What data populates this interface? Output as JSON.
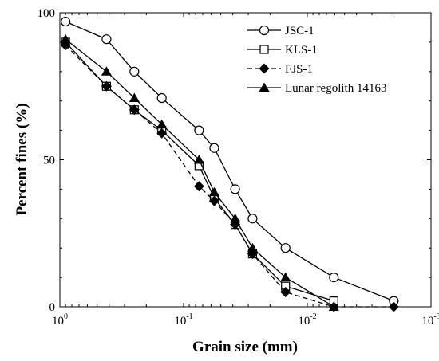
{
  "chart_data": {
    "type": "line",
    "xscale": "log",
    "xdirection": "reversed",
    "xlim": [
      1.0,
      0.001
    ],
    "ylim": [
      0,
      100
    ],
    "xlabel": "Grain size (mm)",
    "ylabel": "Percent fines (%)",
    "xticks": [
      {
        "value": 1.0,
        "base": "10",
        "exp": "0"
      },
      {
        "value": 0.1,
        "base": "10",
        "exp": "-1"
      },
      {
        "value": 0.01,
        "base": "10",
        "exp": "-2"
      },
      {
        "value": 0.001,
        "base": "10",
        "exp": "-3"
      }
    ],
    "yticks": [
      {
        "value": 0,
        "label": "0"
      },
      {
        "value": 50,
        "label": "50"
      },
      {
        "value": 100,
        "label": "100"
      }
    ],
    "grid": false,
    "legend_position": "top-right",
    "series": [
      {
        "name": "JSC-1",
        "marker": "circle-open",
        "line": "solid",
        "x": [
          0.9,
          0.42,
          0.25,
          0.15,
          0.075,
          0.0565,
          0.0383,
          0.0277,
          0.015,
          0.0061,
          0.002
        ],
        "y": [
          97,
          91,
          80,
          71,
          60,
          54,
          40,
          30,
          20,
          10,
          2
        ]
      },
      {
        "name": "KLS-1",
        "marker": "square-open",
        "line": "solid",
        "x": [
          0.9,
          0.42,
          0.25,
          0.15,
          0.075,
          0.0565,
          0.0383,
          0.0277,
          0.015,
          0.0061
        ],
        "y": [
          90,
          75,
          67,
          60,
          48,
          37,
          28,
          18,
          7,
          2
        ]
      },
      {
        "name": "FJS-1",
        "marker": "diamond-filled",
        "line": "dashed",
        "x": [
          0.9,
          0.42,
          0.25,
          0.15,
          0.075,
          0.0565,
          0.0383,
          0.0277,
          0.015,
          0.0061,
          0.002
        ],
        "y": [
          89,
          75,
          67,
          59,
          41,
          36,
          28,
          18,
          5,
          0,
          0
        ]
      },
      {
        "name": "Lunar regolith 14163",
        "marker": "triangle-filled",
        "line": "solid",
        "x": [
          0.9,
          0.42,
          0.25,
          0.15,
          0.075,
          0.0565,
          0.0383,
          0.0277,
          0.015,
          0.0061
        ],
        "y": [
          91,
          80,
          71,
          62,
          50,
          39,
          30,
          20,
          10,
          0
        ]
      }
    ]
  }
}
